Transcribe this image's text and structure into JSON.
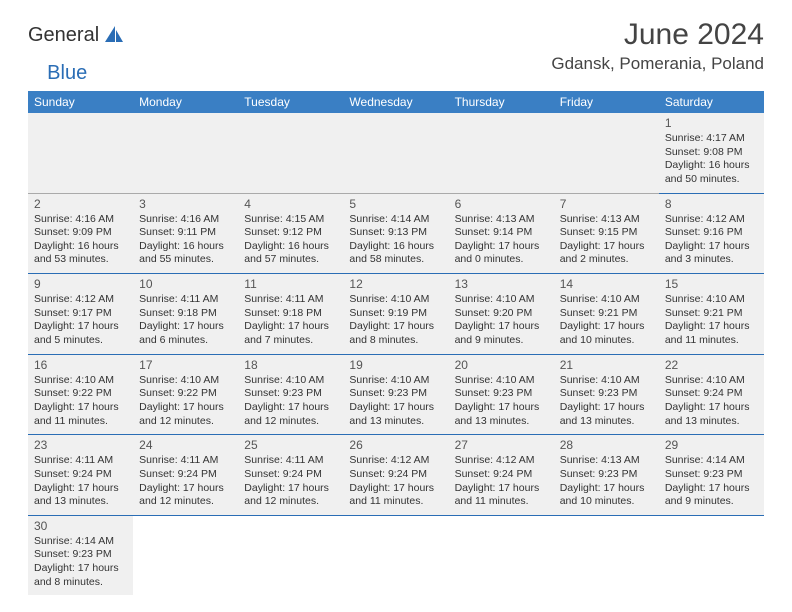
{
  "brand": {
    "text1": "General",
    "text2": "Blue",
    "icon_color": "#2a6db5"
  },
  "title": "June 2024",
  "location": "Gdansk, Pomerania, Poland",
  "colors": {
    "header_bg": "#3a7fc4",
    "accent": "#2a6db5",
    "row_bg": "#f0f0f0"
  },
  "weekdays": [
    "Sunday",
    "Monday",
    "Tuesday",
    "Wednesday",
    "Thursday",
    "Friday",
    "Saturday"
  ],
  "weeks": [
    [
      null,
      null,
      null,
      null,
      null,
      null,
      {
        "n": "1",
        "rise": "Sunrise: 4:17 AM",
        "set": "Sunset: 9:08 PM",
        "day": "Daylight: 16 hours and 50 minutes."
      }
    ],
    [
      {
        "n": "2",
        "rise": "Sunrise: 4:16 AM",
        "set": "Sunset: 9:09 PM",
        "day": "Daylight: 16 hours and 53 minutes."
      },
      {
        "n": "3",
        "rise": "Sunrise: 4:16 AM",
        "set": "Sunset: 9:11 PM",
        "day": "Daylight: 16 hours and 55 minutes."
      },
      {
        "n": "4",
        "rise": "Sunrise: 4:15 AM",
        "set": "Sunset: 9:12 PM",
        "day": "Daylight: 16 hours and 57 minutes."
      },
      {
        "n": "5",
        "rise": "Sunrise: 4:14 AM",
        "set": "Sunset: 9:13 PM",
        "day": "Daylight: 16 hours and 58 minutes."
      },
      {
        "n": "6",
        "rise": "Sunrise: 4:13 AM",
        "set": "Sunset: 9:14 PM",
        "day": "Daylight: 17 hours and 0 minutes."
      },
      {
        "n": "7",
        "rise": "Sunrise: 4:13 AM",
        "set": "Sunset: 9:15 PM",
        "day": "Daylight: 17 hours and 2 minutes."
      },
      {
        "n": "8",
        "rise": "Sunrise: 4:12 AM",
        "set": "Sunset: 9:16 PM",
        "day": "Daylight: 17 hours and 3 minutes."
      }
    ],
    [
      {
        "n": "9",
        "rise": "Sunrise: 4:12 AM",
        "set": "Sunset: 9:17 PM",
        "day": "Daylight: 17 hours and 5 minutes."
      },
      {
        "n": "10",
        "rise": "Sunrise: 4:11 AM",
        "set": "Sunset: 9:18 PM",
        "day": "Daylight: 17 hours and 6 minutes."
      },
      {
        "n": "11",
        "rise": "Sunrise: 4:11 AM",
        "set": "Sunset: 9:18 PM",
        "day": "Daylight: 17 hours and 7 minutes."
      },
      {
        "n": "12",
        "rise": "Sunrise: 4:10 AM",
        "set": "Sunset: 9:19 PM",
        "day": "Daylight: 17 hours and 8 minutes."
      },
      {
        "n": "13",
        "rise": "Sunrise: 4:10 AM",
        "set": "Sunset: 9:20 PM",
        "day": "Daylight: 17 hours and 9 minutes."
      },
      {
        "n": "14",
        "rise": "Sunrise: 4:10 AM",
        "set": "Sunset: 9:21 PM",
        "day": "Daylight: 17 hours and 10 minutes."
      },
      {
        "n": "15",
        "rise": "Sunrise: 4:10 AM",
        "set": "Sunset: 9:21 PM",
        "day": "Daylight: 17 hours and 11 minutes."
      }
    ],
    [
      {
        "n": "16",
        "rise": "Sunrise: 4:10 AM",
        "set": "Sunset: 9:22 PM",
        "day": "Daylight: 17 hours and 11 minutes."
      },
      {
        "n": "17",
        "rise": "Sunrise: 4:10 AM",
        "set": "Sunset: 9:22 PM",
        "day": "Daylight: 17 hours and 12 minutes."
      },
      {
        "n": "18",
        "rise": "Sunrise: 4:10 AM",
        "set": "Sunset: 9:23 PM",
        "day": "Daylight: 17 hours and 12 minutes."
      },
      {
        "n": "19",
        "rise": "Sunrise: 4:10 AM",
        "set": "Sunset: 9:23 PM",
        "day": "Daylight: 17 hours and 13 minutes."
      },
      {
        "n": "20",
        "rise": "Sunrise: 4:10 AM",
        "set": "Sunset: 9:23 PM",
        "day": "Daylight: 17 hours and 13 minutes."
      },
      {
        "n": "21",
        "rise": "Sunrise: 4:10 AM",
        "set": "Sunset: 9:23 PM",
        "day": "Daylight: 17 hours and 13 minutes."
      },
      {
        "n": "22",
        "rise": "Sunrise: 4:10 AM",
        "set": "Sunset: 9:24 PM",
        "day": "Daylight: 17 hours and 13 minutes."
      }
    ],
    [
      {
        "n": "23",
        "rise": "Sunrise: 4:11 AM",
        "set": "Sunset: 9:24 PM",
        "day": "Daylight: 17 hours and 13 minutes."
      },
      {
        "n": "24",
        "rise": "Sunrise: 4:11 AM",
        "set": "Sunset: 9:24 PM",
        "day": "Daylight: 17 hours and 12 minutes."
      },
      {
        "n": "25",
        "rise": "Sunrise: 4:11 AM",
        "set": "Sunset: 9:24 PM",
        "day": "Daylight: 17 hours and 12 minutes."
      },
      {
        "n": "26",
        "rise": "Sunrise: 4:12 AM",
        "set": "Sunset: 9:24 PM",
        "day": "Daylight: 17 hours and 11 minutes."
      },
      {
        "n": "27",
        "rise": "Sunrise: 4:12 AM",
        "set": "Sunset: 9:24 PM",
        "day": "Daylight: 17 hours and 11 minutes."
      },
      {
        "n": "28",
        "rise": "Sunrise: 4:13 AM",
        "set": "Sunset: 9:23 PM",
        "day": "Daylight: 17 hours and 10 minutes."
      },
      {
        "n": "29",
        "rise": "Sunrise: 4:14 AM",
        "set": "Sunset: 9:23 PM",
        "day": "Daylight: 17 hours and 9 minutes."
      }
    ],
    [
      {
        "n": "30",
        "rise": "Sunrise: 4:14 AM",
        "set": "Sunset: 9:23 PM",
        "day": "Daylight: 17 hours and 8 minutes."
      },
      null,
      null,
      null,
      null,
      null,
      null
    ]
  ]
}
